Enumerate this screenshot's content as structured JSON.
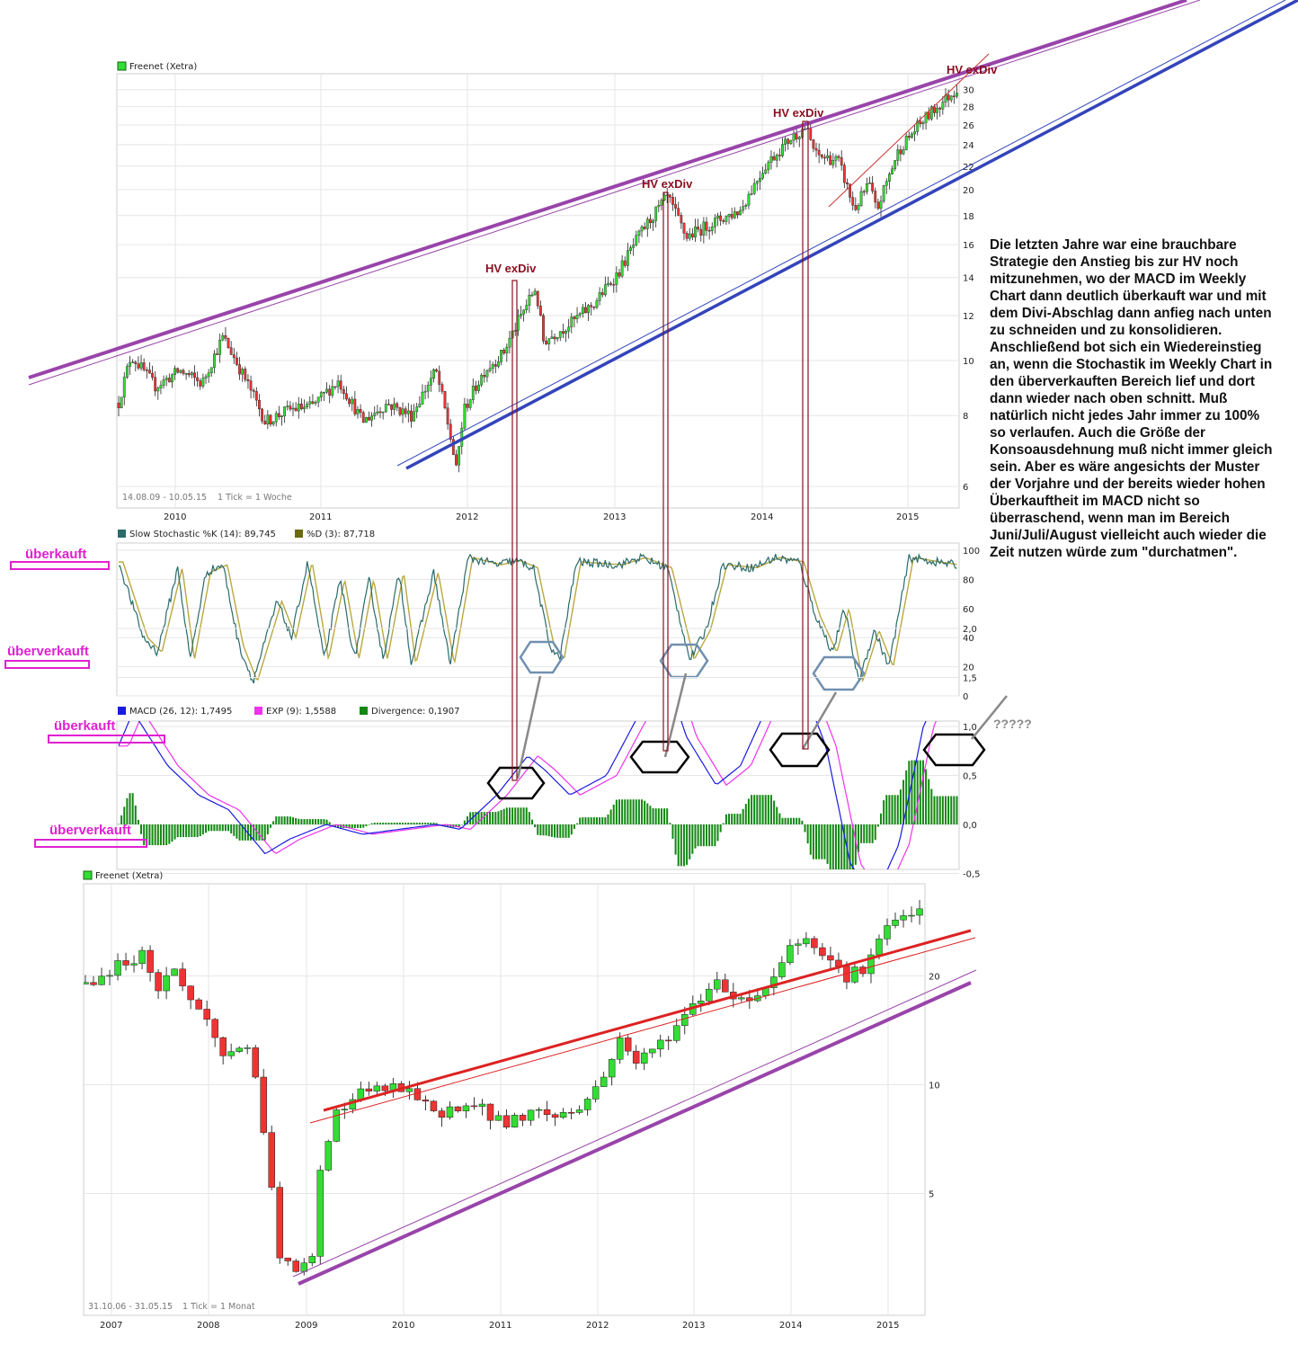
{
  "comment": "Die letzten Jahre war eine brauchbare Strategie den Anstieg bis zur HV noch mitzunehmen, wo der  MACD im Weekly Chart dann deutlich überkauft war und mit dem Divi-Abschlag dann anfieg nach unten zu schneiden und zu konsolidieren. Anschließend bot sich ein Wiedereinstieg an, wenn die Stochastik im Weekly Chart in den überverkauften Bereich lief und dort dann wieder nach oben schnitt. Muß natürlich nicht jedes Jahr immer zu 100% so verlaufen. Auch die Größe der Konsoausdehnung muß nicht immer gleich sein. Aber es wäre angesichts der Muster der Vorjahre und der bereits wieder hohen Überkauftheit im MACD nicht so überraschend, wenn man im Bereich Juni/Juli/August vielleicht auch wieder die Zeit nutzen würde zum \"durchatmen\".",
  "annotations": {
    "overbought": "überkauft",
    "oversold": "überverkauft",
    "hv": "HV exDiv",
    "question": "?????"
  },
  "colors": {
    "up": "#33dd33",
    "down": "#ee3333",
    "purple": "#9944aa",
    "blue": "#3344bb",
    "red": "#dd2222",
    "pink": "#e020d0",
    "hv": "#8b1020",
    "stoch_k": "#2a6a6a",
    "stoch_d": "#b8a840",
    "macd": "#1a1ae0",
    "exp": "#ee33ee",
    "divergence": "#118811"
  },
  "chart_data": [
    {
      "type": "candlestick",
      "title": "Freenet (Xetra)",
      "range_text": "14.08.09 - 10.05.15",
      "tick_text": "1 Tick = 1 Woche",
      "x_ticks": [
        "2010",
        "2011",
        "2012",
        "2013",
        "2014",
        "2015"
      ],
      "y_ticks": [
        6,
        8,
        10,
        12,
        14,
        16,
        18,
        20,
        22,
        24,
        26,
        28,
        30
      ],
      "ylim": [
        5.5,
        32
      ],
      "y_scale": "log",
      "grid": true,
      "path": [
        [
          "2009-08-14",
          8.4
        ],
        [
          "2009-09-15",
          10.2
        ],
        [
          "2009-11-15",
          9.0
        ],
        [
          "2010-01-15",
          9.6
        ],
        [
          "2010-03-10",
          9.1
        ],
        [
          "2010-05-01",
          11.0
        ],
        [
          "2010-06-15",
          9.6
        ],
        [
          "2010-08-15",
          7.8
        ],
        [
          "2010-10-15",
          8.2
        ],
        [
          "2010-12-10",
          8.3
        ],
        [
          "2011-02-15",
          9.2
        ],
        [
          "2011-04-15",
          7.8
        ],
        [
          "2011-06-15",
          8.4
        ],
        [
          "2011-08-15",
          8.0
        ],
        [
          "2011-10-15",
          9.6
        ],
        [
          "2011-11-20",
          7.4
        ],
        [
          "2011-12-05",
          6.4
        ],
        [
          "2011-12-25",
          8.2
        ],
        [
          "2012-02-15",
          9.6
        ],
        [
          "2012-04-01",
          10.3
        ],
        [
          "2012-05-20",
          12.2
        ],
        [
          "2012-06-20",
          13.4
        ],
        [
          "2012-07-10",
          10.8
        ],
        [
          "2012-09-15",
          11.6
        ],
        [
          "2012-11-15",
          12.6
        ],
        [
          "2013-01-15",
          14.3
        ],
        [
          "2013-03-15",
          17.0
        ],
        [
          "2013-05-15",
          19.4
        ],
        [
          "2013-07-01",
          16.5
        ],
        [
          "2013-09-15",
          17.6
        ],
        [
          "2013-11-15",
          18.4
        ],
        [
          "2014-01-15",
          22.0
        ],
        [
          "2014-03-15",
          24.5
        ],
        [
          "2014-04-25",
          25.8
        ],
        [
          "2014-05-20",
          23.0
        ],
        [
          "2014-07-15",
          22.5
        ],
        [
          "2014-08-25",
          18.4
        ],
        [
          "2014-10-01",
          20.5
        ],
        [
          "2014-10-20",
          18.3
        ],
        [
          "2014-12-15",
          23.5
        ],
        [
          "2015-02-15",
          26.5
        ],
        [
          "2015-04-01",
          28.5
        ],
        [
          "2015-05-10",
          30.2
        ]
      ]
    },
    {
      "type": "line",
      "title": "Slow Stochastic %K (14): 89,745",
      "series": [
        {
          "name": "Slow Stochastic %K (14): 89,745"
        },
        {
          "name": "%D (3): 87,718"
        }
      ],
      "y_ticks": [
        0,
        20,
        40,
        60,
        80,
        100
      ],
      "ylim": [
        0,
        100
      ],
      "path": [
        [
          "2009-08-14",
          92
        ],
        [
          "2009-10-15",
          40
        ],
        [
          "2009-11-20",
          30
        ],
        [
          "2010-01-10",
          88
        ],
        [
          "2010-02-10",
          25
        ],
        [
          "2010-03-20",
          85
        ],
        [
          "2010-05-01",
          90
        ],
        [
          "2010-06-10",
          35
        ],
        [
          "2010-07-15",
          10
        ],
        [
          "2010-09-15",
          65
        ],
        [
          "2010-10-20",
          40
        ],
        [
          "2010-11-30",
          92
        ],
        [
          "2011-01-10",
          25
        ],
        [
          "2011-02-20",
          80
        ],
        [
          "2011-03-25",
          25
        ],
        [
          "2011-05-01",
          80
        ],
        [
          "2011-06-05",
          25
        ],
        [
          "2011-07-15",
          85
        ],
        [
          "2011-08-15",
          22
        ],
        [
          "2011-10-10",
          85
        ],
        [
          "2011-11-20",
          22
        ],
        [
          "2012-01-05",
          95
        ],
        [
          "2012-03-15",
          90
        ],
        [
          "2012-05-01",
          93
        ],
        [
          "2012-06-15",
          88
        ],
        [
          "2012-07-25",
          35
        ],
        [
          "2012-08-20",
          25
        ],
        [
          "2012-10-01",
          92
        ],
        [
          "2013-01-15",
          90
        ],
        [
          "2013-03-10",
          95
        ],
        [
          "2013-05-15",
          88
        ],
        [
          "2013-07-10",
          25
        ],
        [
          "2013-08-20",
          45
        ],
        [
          "2013-10-01",
          90
        ],
        [
          "2013-12-15",
          88
        ],
        [
          "2014-02-10",
          95
        ],
        [
          "2014-04-10",
          92
        ],
        [
          "2014-05-20",
          55
        ],
        [
          "2014-07-01",
          30
        ],
        [
          "2014-08-01",
          60
        ],
        [
          "2014-09-05",
          10
        ],
        [
          "2014-10-15",
          45
        ],
        [
          "2014-11-20",
          20
        ],
        [
          "2015-01-10",
          95
        ],
        [
          "2015-03-15",
          92
        ],
        [
          "2015-05-10",
          89.7
        ]
      ]
    },
    {
      "type": "line+bar",
      "title": "MACD (26, 12): 1,7495",
      "series": [
        {
          "name": "MACD (26, 12): 1,7495"
        },
        {
          "name": "EXP (9): 1,5588"
        },
        {
          "name": "Divergence: 0,1907"
        }
      ],
      "y_ticks": [
        -0.5,
        0.0,
        0.5,
        1.0,
        1.5,
        2.0
      ],
      "y_tick_labels": [
        "-0,5",
        "0,0",
        "0,5",
        "1,0",
        "1,5",
        "2,0"
      ],
      "ylim": [
        -0.9,
        2.1
      ],
      "path": [
        [
          "2009-08-14",
          0.8
        ],
        [
          "2009-09-20",
          1.15
        ],
        [
          "2009-12-15",
          0.6
        ],
        [
          "2010-03-01",
          0.3
        ],
        [
          "2010-05-15",
          0.15
        ],
        [
          "2010-08-15",
          -0.3
        ],
        [
          "2010-10-15",
          -0.15
        ],
        [
          "2011-01-15",
          0.0
        ],
        [
          "2011-04-15",
          -0.1
        ],
        [
          "2011-07-15",
          -0.05
        ],
        [
          "2011-10-15",
          0.0
        ],
        [
          "2011-12-15",
          -0.05
        ],
        [
          "2012-03-15",
          0.3
        ],
        [
          "2012-06-01",
          0.7
        ],
        [
          "2012-07-15",
          0.55
        ],
        [
          "2012-09-15",
          0.3
        ],
        [
          "2012-12-15",
          0.5
        ],
        [
          "2013-03-15",
          1.2
        ],
        [
          "2013-05-15",
          1.5
        ],
        [
          "2013-07-01",
          0.9
        ],
        [
          "2013-09-15",
          0.4
        ],
        [
          "2013-11-15",
          0.6
        ],
        [
          "2014-02-01",
          1.3
        ],
        [
          "2014-04-15",
          1.45
        ],
        [
          "2014-06-15",
          0.8
        ],
        [
          "2014-08-15",
          -0.4
        ],
        [
          "2014-10-15",
          -0.75
        ],
        [
          "2014-12-15",
          -0.2
        ],
        [
          "2015-02-15",
          1.0
        ],
        [
          "2015-05-10",
          1.75
        ]
      ]
    },
    {
      "type": "candlestick",
      "title": "Freenet (Xetra)",
      "range_text": "31.10.06 - 31.05.15",
      "tick_text": "1 Tick = 1 Monat",
      "x_ticks": [
        "2007",
        "2008",
        "2009",
        "2010",
        "2011",
        "2012",
        "2013",
        "2014",
        "2015"
      ],
      "y_ticks": [
        5,
        10,
        20
      ],
      "ylim": [
        2.3,
        36
      ],
      "y_scale": "log",
      "grid": true,
      "path": [
        [
          "2006-11-01",
          19.0
        ],
        [
          "2007-01-01",
          20.0
        ],
        [
          "2007-04-01",
          22.0
        ],
        [
          "2007-06-01",
          23.0
        ],
        [
          "2007-08-01",
          18.5
        ],
        [
          "2007-10-01",
          21.0
        ],
        [
          "2007-12-01",
          17.0
        ],
        [
          "2008-02-01",
          15.0
        ],
        [
          "2008-04-01",
          12.0
        ],
        [
          "2008-07-01",
          13.0
        ],
        [
          "2008-09-01",
          7.0
        ],
        [
          "2008-11-01",
          3.3
        ],
        [
          "2009-01-01",
          3.0
        ],
        [
          "2009-03-01",
          3.3
        ],
        [
          "2009-04-01",
          6.0
        ],
        [
          "2009-06-01",
          8.5
        ],
        [
          "2009-09-01",
          9.5
        ],
        [
          "2009-12-01",
          9.8
        ],
        [
          "2010-03-01",
          9.6
        ],
        [
          "2010-06-01",
          8.2
        ],
        [
          "2010-09-01",
          8.8
        ],
        [
          "2010-12-01",
          8.5
        ],
        [
          "2011-03-01",
          7.8
        ],
        [
          "2011-06-01",
          8.5
        ],
        [
          "2011-09-01",
          8.2
        ],
        [
          "2011-12-01",
          8.6
        ],
        [
          "2012-03-01",
          10.5
        ],
        [
          "2012-05-01",
          13.5
        ],
        [
          "2012-07-01",
          11.5
        ],
        [
          "2012-10-01",
          13.0
        ],
        [
          "2013-01-01",
          15.5
        ],
        [
          "2013-05-01",
          19.5
        ],
        [
          "2013-08-01",
          17.0
        ],
        [
          "2013-11-01",
          18.5
        ],
        [
          "2014-02-01",
          24.0
        ],
        [
          "2014-04-01",
          26.0
        ],
        [
          "2014-07-01",
          22.0
        ],
        [
          "2014-09-01",
          20.0
        ],
        [
          "2014-11-01",
          21.0
        ],
        [
          "2015-02-01",
          27.0
        ],
        [
          "2015-05-01",
          30.0
        ]
      ]
    }
  ]
}
